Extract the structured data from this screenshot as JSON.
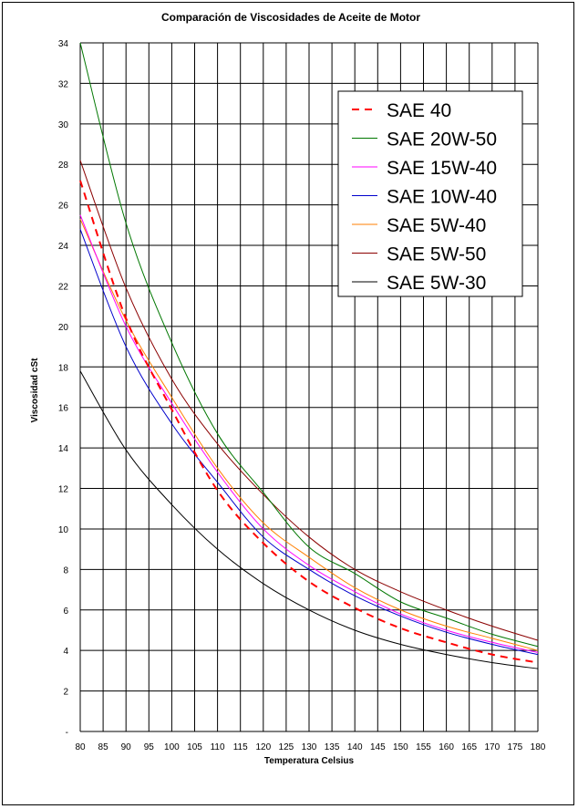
{
  "chart_data": {
    "type": "line",
    "title": "Comparación de Viscosidades de Aceite de Motor",
    "xlabel": "Temperatura Celsius",
    "ylabel": "Viscosidad cSt",
    "xlim": [
      80,
      180
    ],
    "ylim": [
      0,
      34
    ],
    "x_ticks": [
      "80",
      "85",
      "90",
      "95",
      "100",
      "105",
      "110",
      "115",
      "120",
      "125",
      "130",
      "135",
      "140",
      "145",
      "150",
      "155",
      "160",
      "165",
      "170",
      "175",
      "180"
    ],
    "y_ticks": [
      "-",
      "2",
      "4",
      "6",
      "8",
      "10",
      "12",
      "14",
      "16",
      "18",
      "20",
      "22",
      "24",
      "26",
      "28",
      "30",
      "32",
      "34"
    ],
    "grid": true,
    "legend_position": "top-right",
    "x": [
      80,
      90,
      100,
      110,
      120,
      130,
      140,
      150,
      160,
      170,
      180
    ],
    "series": [
      {
        "name": "SAE 40",
        "color": "#ff0000",
        "dashed": true,
        "values": [
          27.2,
          20.4,
          15.9,
          11.9,
          9.3,
          7.4,
          6.1,
          5.1,
          4.4,
          3.8,
          3.4
        ]
      },
      {
        "name": "SAE 20W-50",
        "color": "#007700",
        "dashed": false,
        "values": [
          34.0,
          25.1,
          19.2,
          14.7,
          11.8,
          9.1,
          7.8,
          6.4,
          5.6,
          4.8,
          4.2
        ]
      },
      {
        "name": "SAE 15W-40",
        "color": "#ff00ff",
        "dashed": false,
        "values": [
          25.5,
          20.0,
          16.2,
          12.8,
          10.0,
          8.2,
          6.9,
          5.8,
          5.0,
          4.4,
          3.9
        ]
      },
      {
        "name": "SAE 10W-40",
        "color": "#0000cc",
        "dashed": false,
        "values": [
          24.8,
          19.0,
          15.2,
          12.3,
          9.6,
          8.0,
          6.7,
          5.7,
          4.9,
          4.3,
          3.8
        ]
      },
      {
        "name": "SAE 5W-40",
        "color": "#ff7f00",
        "dashed": false,
        "values": [
          25.3,
          20.3,
          16.5,
          13.0,
          10.3,
          8.6,
          7.1,
          6.0,
          5.2,
          4.6,
          4.0
        ]
      },
      {
        "name": "SAE 5W-50",
        "color": "#8b0000",
        "dashed": false,
        "values": [
          28.2,
          21.9,
          17.4,
          14.2,
          11.7,
          9.6,
          8.0,
          6.9,
          6.0,
          5.2,
          4.5
        ]
      },
      {
        "name": "SAE 5W-30",
        "color": "#000000",
        "dashed": false,
        "values": [
          17.8,
          13.9,
          11.2,
          9.0,
          7.3,
          6.0,
          5.0,
          4.3,
          3.8,
          3.4,
          3.1
        ]
      }
    ]
  }
}
